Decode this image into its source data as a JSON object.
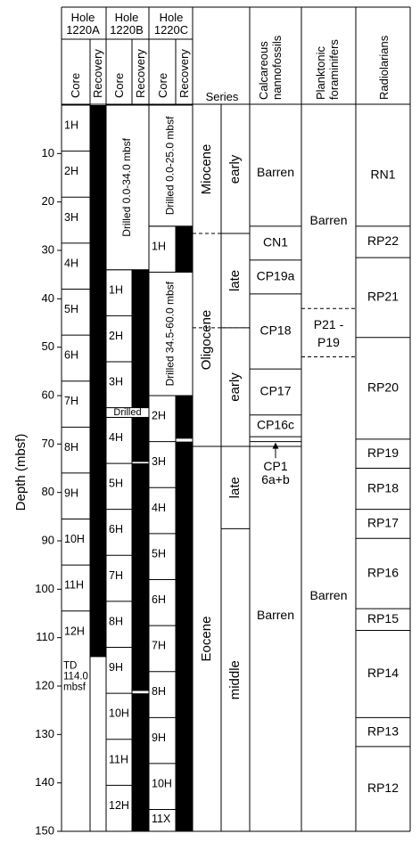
{
  "axis": {
    "label": "Depth (mbsf)",
    "min": 0,
    "max": 150,
    "ticks": [
      10,
      20,
      30,
      40,
      50,
      60,
      70,
      80,
      90,
      100,
      110,
      120,
      130,
      140,
      150
    ],
    "tick_labels": [
      "10",
      "20",
      "30",
      "40",
      "50",
      "60",
      "70",
      "80",
      "90",
      "100",
      "110",
      "120",
      "130",
      "140",
      "150"
    ]
  },
  "headers": {
    "holes": [
      {
        "line1": "Hole",
        "line2": "1220A"
      },
      {
        "line1": "Hole",
        "line2": "1220B"
      },
      {
        "line1": "Hole",
        "line2": "1220C"
      }
    ],
    "core": "Core",
    "recovery": "Recovery",
    "series": "Series",
    "nanno": [
      "Calcareous",
      "nannofossils"
    ],
    "foram": [
      "Planktonic",
      "foraminifers"
    ],
    "radio": "Radiolarians"
  },
  "holes": [
    {
      "cores": [
        {
          "label": "1H",
          "top": 0,
          "bottom": 9.5
        },
        {
          "label": "2H",
          "top": 9.5,
          "bottom": 19
        },
        {
          "label": "3H",
          "top": 19,
          "bottom": 28.5
        },
        {
          "label": "4H",
          "top": 28.5,
          "bottom": 38
        },
        {
          "label": "5H",
          "top": 38,
          "bottom": 47.5
        },
        {
          "label": "6H",
          "top": 47.5,
          "bottom": 57
        },
        {
          "label": "7H",
          "top": 57,
          "bottom": 66.5
        },
        {
          "label": "8H",
          "top": 66.5,
          "bottom": 76
        },
        {
          "label": "9H",
          "top": 76,
          "bottom": 85.5
        },
        {
          "label": "10H",
          "top": 85.5,
          "bottom": 95
        },
        {
          "label": "11H",
          "top": 95,
          "bottom": 104.5
        },
        {
          "label": "12H",
          "top": 104.5,
          "bottom": 114
        }
      ],
      "recovery": [
        {
          "top": 0,
          "bottom": 114
        }
      ],
      "td": [
        "TD",
        "114.0",
        "mbsf"
      ],
      "td_depth": 114
    },
    {
      "drilled": [
        {
          "label": "Drilled 0.0-34.0 mbsf",
          "top": 0,
          "bottom": 34,
          "vertical": true
        },
        {
          "label": "Drilled",
          "top": 62.5,
          "bottom": 64.5,
          "vertical": false
        }
      ],
      "cores": [
        {
          "label": "1H",
          "top": 34,
          "bottom": 43.5
        },
        {
          "label": "2H",
          "top": 43.5,
          "bottom": 53
        },
        {
          "label": "3H",
          "top": 53,
          "bottom": 62.5
        },
        {
          "label": "4H",
          "top": 64.5,
          "bottom": 74
        },
        {
          "label": "5H",
          "top": 74,
          "bottom": 83.5
        },
        {
          "label": "6H",
          "top": 83.5,
          "bottom": 93
        },
        {
          "label": "7H",
          "top": 93,
          "bottom": 102.5
        },
        {
          "label": "8H",
          "top": 102.5,
          "bottom": 112
        },
        {
          "label": "9H",
          "top": 112,
          "bottom": 121.5
        },
        {
          "label": "10H",
          "top": 121.5,
          "bottom": 131
        },
        {
          "label": "11H",
          "top": 131,
          "bottom": 140.5
        },
        {
          "label": "12H",
          "top": 140.5,
          "bottom": 150
        }
      ],
      "recovery": [
        {
          "top": 34,
          "bottom": 62.5
        },
        {
          "top": 64.5,
          "bottom": 73.7
        },
        {
          "top": 74,
          "bottom": 121
        },
        {
          "top": 121.5,
          "bottom": 150
        }
      ]
    },
    {
      "drilled": [
        {
          "label": "Drilled 0.0-25.0 mbsf",
          "top": 0,
          "bottom": 25,
          "vertical": true
        },
        {
          "label": "Drilled 34.5-60.0 mbsf",
          "top": 34.5,
          "bottom": 60,
          "vertical": true
        }
      ],
      "cores": [
        {
          "label": "1H",
          "top": 25,
          "bottom": 34.5
        },
        {
          "label": "2H",
          "top": 60,
          "bottom": 69.5
        },
        {
          "label": "3H",
          "top": 69.5,
          "bottom": 79
        },
        {
          "label": "4H",
          "top": 79,
          "bottom": 88.5
        },
        {
          "label": "5H",
          "top": 88.5,
          "bottom": 98
        },
        {
          "label": "6H",
          "top": 98,
          "bottom": 107.5
        },
        {
          "label": "7H",
          "top": 107.5,
          "bottom": 117
        },
        {
          "label": "8H",
          "top": 117,
          "bottom": 126.5
        },
        {
          "label": "9H",
          "top": 126.5,
          "bottom": 136
        },
        {
          "label": "10H",
          "top": 136,
          "bottom": 145.5
        },
        {
          "label": "11X",
          "top": 145.5,
          "bottom": 150
        }
      ],
      "recovery": [
        {
          "top": 25,
          "bottom": 34.5
        },
        {
          "top": 60,
          "bottom": 68.9
        },
        {
          "top": 69.5,
          "bottom": 150
        }
      ]
    }
  ],
  "series": {
    "epochs": [
      {
        "label": "Miocene",
        "top": 0,
        "bottom": 26.5
      },
      {
        "label": "Oligocene",
        "top": 26.5,
        "bottom": 70.5
      },
      {
        "label": "Eocene",
        "top": 70.5,
        "bottom": 150
      }
    ],
    "subepochs": [
      {
        "label": "early",
        "top": 0,
        "bottom": 26.5
      },
      {
        "label": "late",
        "top": 26.5,
        "bottom": 46
      },
      {
        "label": "early",
        "top": 46,
        "bottom": 70.5
      },
      {
        "label": "late",
        "top": 70.5,
        "bottom": 87.5
      },
      {
        "label": "middle",
        "top": 87.5,
        "bottom": 150
      }
    ],
    "dashed": [
      26.5,
      46
    ],
    "solid_lines": [
      70.5
    ],
    "sub_solid": [
      87.5
    ]
  },
  "nanno": {
    "zones": [
      {
        "label": "Barren",
        "top": 0,
        "bottom": 25
      },
      {
        "label": "CN1",
        "top": 25,
        "bottom": 32
      },
      {
        "label": "CP19a",
        "top": 32,
        "bottom": 39
      },
      {
        "label": "CP18",
        "top": 39,
        "bottom": 54.5
      },
      {
        "label": "CP17",
        "top": 54.5,
        "bottom": 64
      },
      {
        "label": "CP16c",
        "top": 64,
        "bottom": 68.5
      },
      {
        "label": "Barren",
        "top": 70,
        "bottom": 150
      }
    ],
    "lines": [
      25,
      32,
      39,
      54.5,
      64,
      68.5,
      69.5
    ],
    "cp1": [
      "CP1",
      "6a+b"
    ],
    "cp1_depth": 75.5,
    "arrow_depth": 69.5
  },
  "foram": {
    "zones": [
      {
        "label": "Barren",
        "top": 0,
        "bottom": 42
      },
      {
        "label": "P21 -",
        "top": 45,
        "bottom": 48
      },
      {
        "label": "P19",
        "top": 48.5,
        "bottom": 51.5
      },
      {
        "label": "Barren",
        "top": 52,
        "bottom": 150
      }
    ],
    "dashed": [
      42,
      52
    ],
    "barren_top_depth": 24,
    "barren_bottom_depth": 101.5
  },
  "radio": {
    "zones": [
      {
        "label": "RN1",
        "top": 0,
        "bottom": 25
      },
      {
        "label": "RP22",
        "top": 25,
        "bottom": 31.5
      },
      {
        "label": "RP21",
        "top": 31.5,
        "bottom": 48
      },
      {
        "label": "RP20",
        "top": 48,
        "bottom": 69
      },
      {
        "label": "RP19",
        "top": 69,
        "bottom": 75
      },
      {
        "label": "RP18",
        "top": 75,
        "bottom": 83.5
      },
      {
        "label": "RP17",
        "top": 83.5,
        "bottom": 89.5
      },
      {
        "label": "RP16",
        "top": 89.5,
        "bottom": 104
      },
      {
        "label": "RP15",
        "top": 104,
        "bottom": 108.5
      },
      {
        "label": "RP14",
        "top": 108.5,
        "bottom": 126.5
      },
      {
        "label": "RP13",
        "top": 126.5,
        "bottom": 132.5
      },
      {
        "label": "RP12",
        "top": 132.5,
        "bottom": 150
      }
    ]
  }
}
